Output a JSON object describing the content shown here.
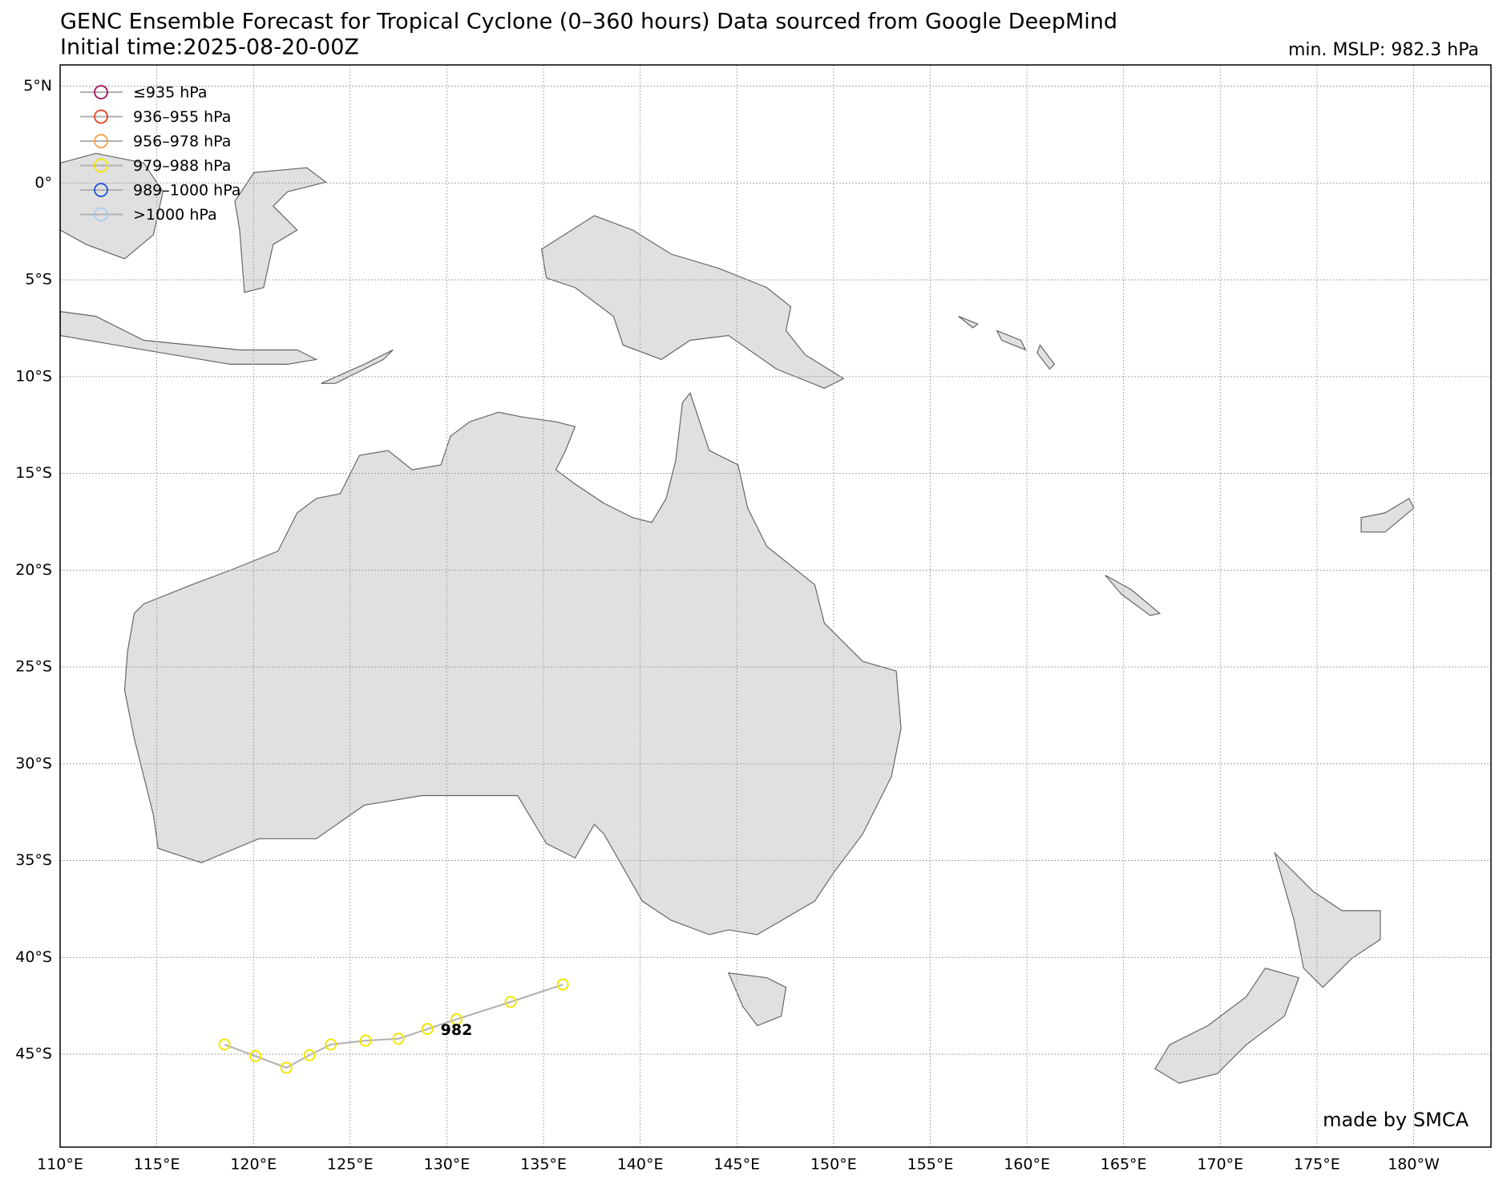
{
  "chart_data": {
    "type": "line",
    "title": "GENC Ensemble Forecast for Tropical Cyclone (0–360 hours) Data sourced from Google DeepMind",
    "subtitle": "Initial time:2025-08-20-00Z",
    "min_mslp": "min. MSLP: 982.3 hPa",
    "credit": "made by SMCA",
    "annotation": "982",
    "x": [
      118.5,
      120.1,
      121.7,
      122.9,
      124.0,
      125.8,
      127.5,
      129.0,
      130.5,
      133.3,
      136.0
    ],
    "values": [
      -44.5,
      -45.1,
      -45.7,
      -45.05,
      -44.5,
      -44.3,
      -44.2,
      -43.7,
      -43.2,
      -42.3,
      -41.4
    ],
    "color": "#f2e600",
    "line_color": "#b0b0b0",
    "legend": [
      {
        "label": "≤935 hPa",
        "color": "#a0105a"
      },
      {
        "label": "936–955 hPa",
        "color": "#e8401c"
      },
      {
        "label": "956–978 hPa",
        "color": "#f5a040"
      },
      {
        "label": "979–988 hPa",
        "color": "#f2e600"
      },
      {
        "label": "989–1000 hPa",
        "color": "#1f4fe0"
      },
      {
        "label": ">1000 hPa",
        "color": "#a6cdf0"
      }
    ],
    "xlim": [
      110,
      184
    ],
    "ylim": [
      -49.8,
      6.1
    ],
    "xticks": [
      {
        "value": 110,
        "label": "110°E"
      },
      {
        "value": 115,
        "label": "115°E"
      },
      {
        "value": 120,
        "label": "120°E"
      },
      {
        "value": 125,
        "label": "125°E"
      },
      {
        "value": 130,
        "label": "130°E"
      },
      {
        "value": 135,
        "label": "135°E"
      },
      {
        "value": 140,
        "label": "140°E"
      },
      {
        "value": 145,
        "label": "145°E"
      },
      {
        "value": 150,
        "label": "150°E"
      },
      {
        "value": 155,
        "label": "155°E"
      },
      {
        "value": 160,
        "label": "160°E"
      },
      {
        "value": 165,
        "label": "165°E"
      },
      {
        "value": 170,
        "label": "170°E"
      },
      {
        "value": 175,
        "label": "175°E"
      },
      {
        "value": 180,
        "label": "180°W"
      }
    ],
    "yticks": [
      {
        "value": 5,
        "label": "5°N"
      },
      {
        "value": 0,
        "label": "0°"
      },
      {
        "value": -5,
        "label": "5°S"
      },
      {
        "value": -10,
        "label": "10°S"
      },
      {
        "value": -15,
        "label": "15°S"
      },
      {
        "value": -20,
        "label": "20°S"
      },
      {
        "value": -25,
        "label": "25°S"
      },
      {
        "value": -30,
        "label": "30°S"
      },
      {
        "value": -35,
        "label": "35°S"
      },
      {
        "value": -40,
        "label": "40°S"
      },
      {
        "value": -45,
        "label": "45°S"
      }
    ],
    "grid": true
  }
}
